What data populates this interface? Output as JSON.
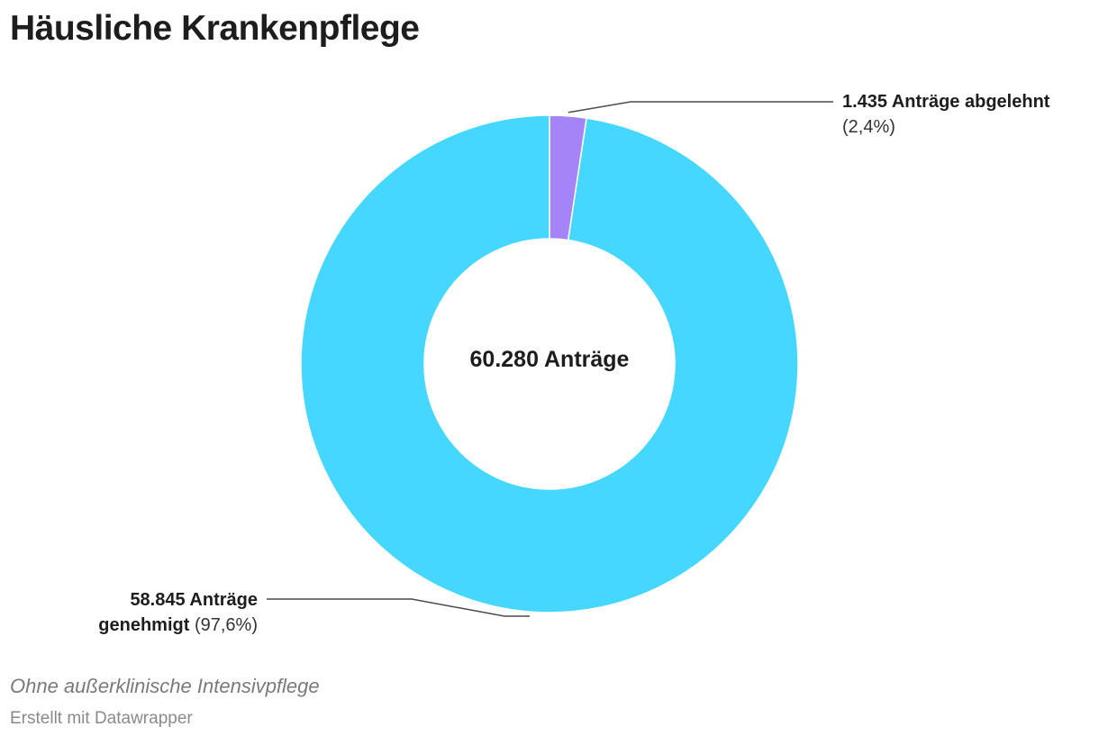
{
  "title": "Häusliche Krankenpflege",
  "note": "Ohne außerklinische Intensivpflege",
  "credit": "Erstellt mit Datawrapper",
  "chart_data": {
    "type": "pie",
    "variant": "donut",
    "center_label": "60.280 Anträge",
    "slices": [
      {
        "label_bold": "1.435 Anträge abgelehnt",
        "label_pct": "(2,4%)",
        "value": 1435,
        "percent": 2.4,
        "color": "#a584f7"
      },
      {
        "label_bold_line1": "58.845 Anträge",
        "label_bold_line2": "genehmigt",
        "label_pct": "(97,6%)",
        "value": 58845,
        "percent": 97.6,
        "color": "#45d7ff"
      }
    ]
  }
}
